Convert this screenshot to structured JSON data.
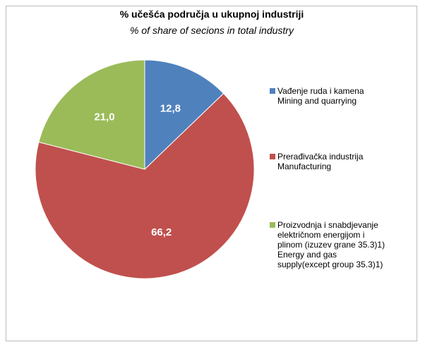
{
  "chart_data": {
    "type": "pie",
    "title": "% učešća područja u ukupnoj industriji",
    "subtitle": "% of share of secions in total industry",
    "categories": [
      "Vađenje ruda i kamena\nMining and quarrying",
      "Prerađivačka industrija\nManufacturing",
      "Proizvodnja i snabdjevanje\nelektričnom energijom i\nplinom (izuzev grane 35.3)1)\nEnergy and gas\nsupply(except group 35.3)1)"
    ],
    "values": [
      12.8,
      66.2,
      21.0
    ],
    "value_labels": [
      "12,8",
      "66,2",
      "21,0"
    ],
    "colors": [
      "#4f81bd",
      "#c0504d",
      "#9bbb59"
    ],
    "legend": "right"
  }
}
